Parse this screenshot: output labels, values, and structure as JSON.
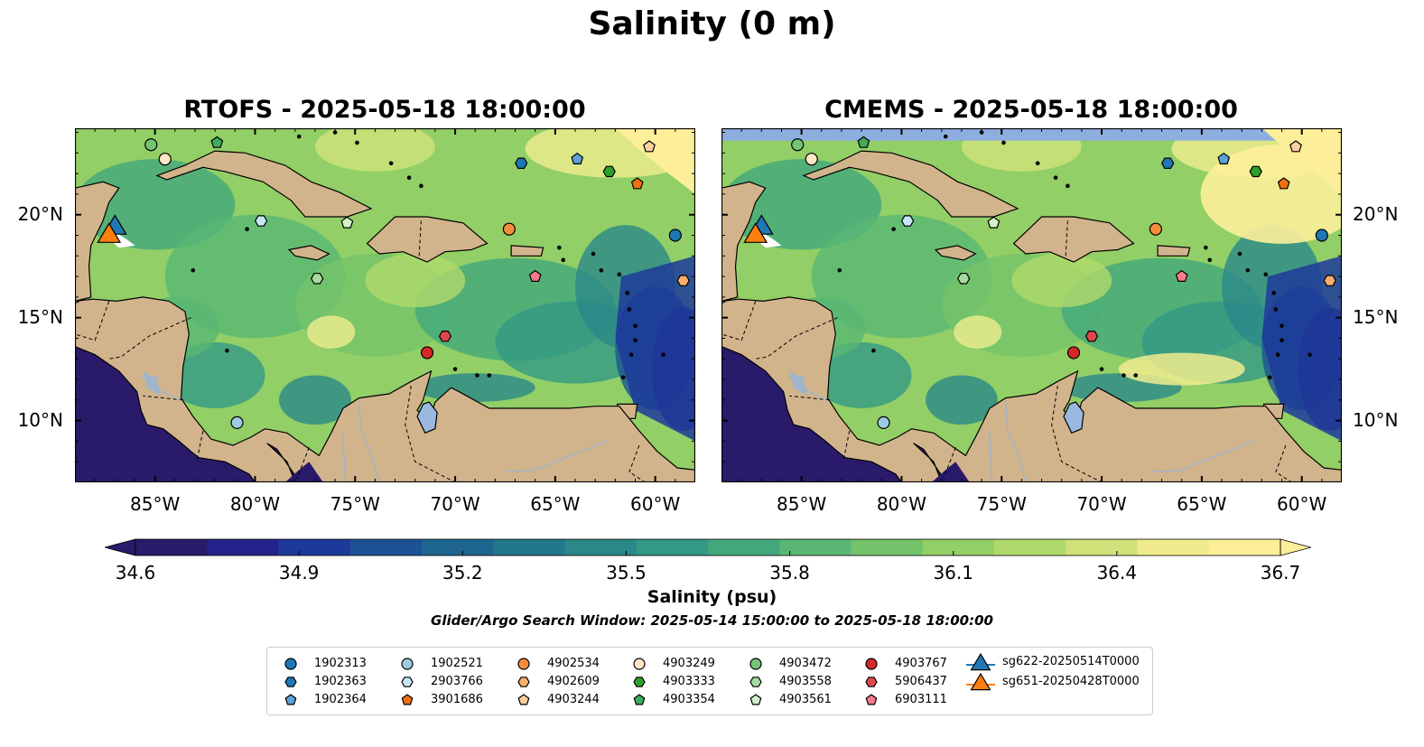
{
  "title": "Salinity (0 m)",
  "panels": [
    {
      "title": "RTOFS - 2025-05-18 18:00:00",
      "model": "rtofs"
    },
    {
      "title": "CMEMS - 2025-05-18 18:00:00",
      "model": "cmems"
    }
  ],
  "map_extent": {
    "lon": [
      -89.0,
      -58.0
    ],
    "lat": [
      7.0,
      24.2
    ]
  },
  "lon_ticks": [
    "85°W",
    "80°W",
    "75°W",
    "70°W",
    "65°W",
    "60°W"
  ],
  "lat_ticks": [
    "10°N",
    "15°N",
    "20°N"
  ],
  "colorbar": {
    "label": "Salinity (psu)",
    "range": [
      34.6,
      36.7
    ],
    "ticks": [
      "34.6",
      "34.9",
      "35.2",
      "35.5",
      "35.8",
      "36.1",
      "36.4",
      "36.7"
    ],
    "colormap": "haline",
    "colors": [
      "#2a1a6a",
      "#24238c",
      "#1d3a9a",
      "#1d5294",
      "#1e6690",
      "#23778c",
      "#2a8888",
      "#339884",
      "#42a87c",
      "#59b674",
      "#74c36a",
      "#92cf66",
      "#b0d96c",
      "#cfe27a",
      "#f0ec8e",
      "#fdef9a"
    ]
  },
  "land_color": "#d2b48c",
  "search_window": "Glider/Argo Search Window: 2025-05-14 15:00:00 to 2025-05-18 18:00:00",
  "floats": [
    {
      "id": "1902313",
      "lon": -59.0,
      "lat": 19.0,
      "marker": "circle",
      "color": "#1f77b4"
    },
    {
      "id": "1902363",
      "lon": -66.7,
      "lat": 22.5,
      "marker": "hexagon",
      "color": "#1f77b4"
    },
    {
      "id": "1902364",
      "lon": -63.9,
      "lat": 22.7,
      "marker": "pentagon",
      "color": "#5ea1d8"
    },
    {
      "id": "1902521",
      "lon": -80.9,
      "lat": 9.9,
      "marker": "circle",
      "color": "#9ecae1"
    },
    {
      "id": "2903766",
      "lon": -79.7,
      "lat": 19.7,
      "marker": "hexagon",
      "color": "#c6e6f6"
    },
    {
      "id": "3901686",
      "lon": -60.9,
      "lat": 21.5,
      "marker": "pentagon",
      "color": "#f07010"
    },
    {
      "id": "4902534",
      "lon": -67.3,
      "lat": 19.3,
      "marker": "circle",
      "color": "#f48c3c"
    },
    {
      "id": "4902609",
      "lon": -58.6,
      "lat": 16.8,
      "marker": "hexagon",
      "color": "#fbae6b"
    },
    {
      "id": "4903244",
      "lon": -60.3,
      "lat": 23.3,
      "marker": "pentagon",
      "color": "#fdd0a2"
    },
    {
      "id": "4903249",
      "lon": -84.5,
      "lat": 22.7,
      "marker": "circle",
      "color": "#fee6c6"
    },
    {
      "id": "4903333",
      "lon": -62.3,
      "lat": 22.1,
      "marker": "hexagon",
      "color": "#2ca02c"
    },
    {
      "id": "4903354",
      "lon": -81.9,
      "lat": 23.5,
      "marker": "pentagon",
      "color": "#41ab5d"
    },
    {
      "id": "4903472",
      "lon": -85.2,
      "lat": 23.4,
      "marker": "circle",
      "color": "#74c476"
    },
    {
      "id": "4903558",
      "lon": -76.9,
      "lat": 16.9,
      "marker": "hexagon",
      "color": "#a6dba0"
    },
    {
      "id": "4903561",
      "lon": -75.4,
      "lat": 19.6,
      "marker": "pentagon",
      "color": "#d4f0cc"
    },
    {
      "id": "4903767",
      "lon": -71.4,
      "lat": 13.3,
      "marker": "circle",
      "color": "#d62728"
    },
    {
      "id": "5906437",
      "lon": -70.5,
      "lat": 14.1,
      "marker": "hexagon",
      "color": "#e0474c"
    },
    {
      "id": "6903111",
      "lon": -66.0,
      "lat": 17.0,
      "marker": "pentagon",
      "color": "#f77b8c"
    }
  ],
  "gliders": [
    {
      "id": "sg622-20250514T0000",
      "lon": -87.0,
      "lat": 19.4,
      "color": "#1f77b4"
    },
    {
      "id": "sg651-20250428T0000",
      "lon": -87.3,
      "lat": 19.0,
      "color": "#ff7f0e"
    }
  ]
}
